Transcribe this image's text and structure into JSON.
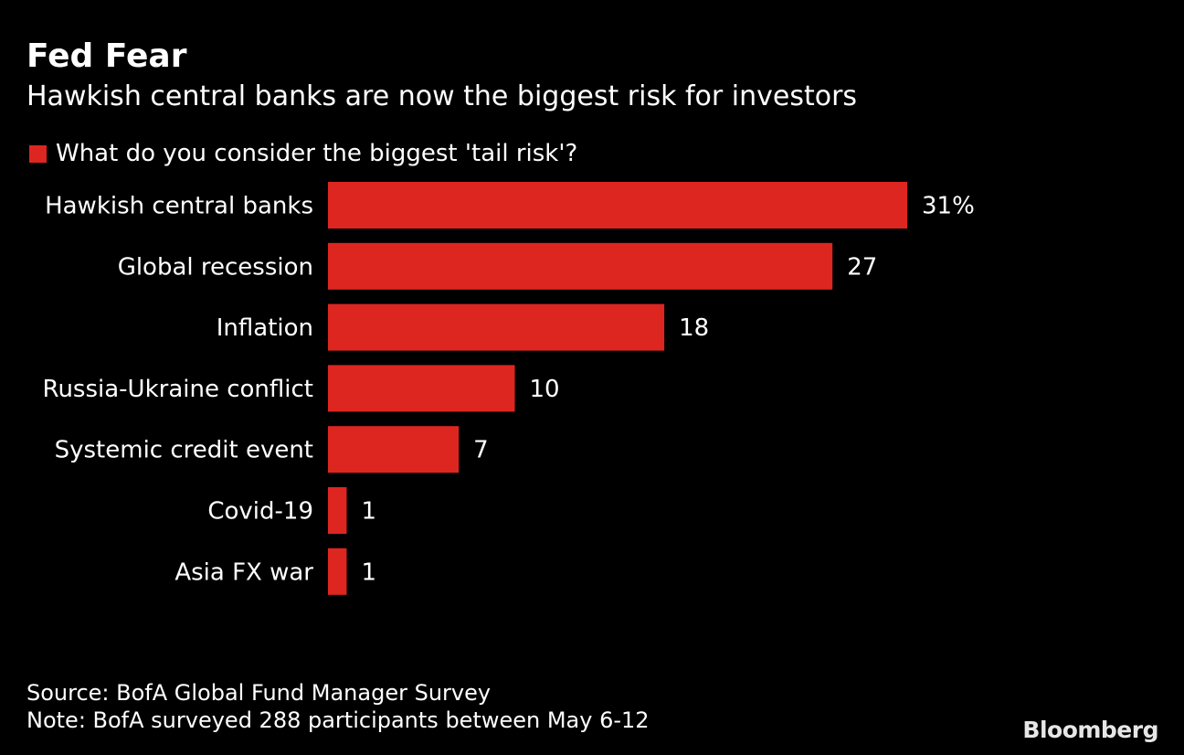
{
  "header": {
    "title": "Fed Fear",
    "subtitle": "Hawkish central banks are now the biggest risk for investors"
  },
  "legend": {
    "label": "What do you consider the biggest 'tail risk'?"
  },
  "colors": {
    "background": "#000000",
    "bar": "#de2621",
    "text": "#ffffff"
  },
  "chart_data": {
    "type": "bar",
    "orientation": "horizontal",
    "categories": [
      "Hawkish central banks",
      "Global recession",
      "Inflation",
      "Russia-Ukraine conflict",
      "Systemic credit event",
      "Covid-19",
      "Asia FX war"
    ],
    "series": [
      {
        "name": "What do you consider the biggest 'tail risk'?",
        "values": [
          31,
          27,
          18,
          10,
          7,
          1,
          1
        ]
      }
    ],
    "value_labels": [
      "31%",
      "27",
      "18",
      "10",
      "7",
      "1",
      "1"
    ],
    "xlim": [
      0,
      31
    ],
    "grid": false,
    "legend_position": "top-left"
  },
  "footer": {
    "source": "Source: BofA Global Fund Manager Survey",
    "note": "Note: BofA surveyed 288 participants between May 6-12",
    "brand": "Bloomberg"
  }
}
